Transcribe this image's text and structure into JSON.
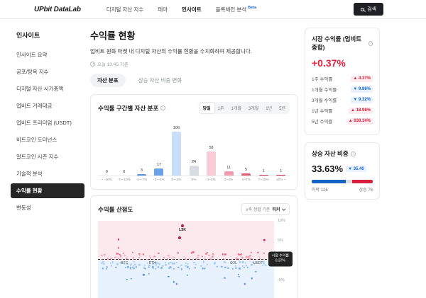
{
  "navbar": {
    "logo": "UPbit DataLab",
    "items": [
      {
        "label": "디지털 자산 지수",
        "active": false,
        "beta": false
      },
      {
        "label": "테마",
        "active": false,
        "beta": false
      },
      {
        "label": "인사이트",
        "active": true,
        "beta": false
      },
      {
        "label": "블록체인 분석",
        "active": false,
        "beta": true
      }
    ],
    "beta_label": "Beta",
    "search_label": "검색"
  },
  "sidebar": {
    "title": "인사이트",
    "items": [
      {
        "label": "인사이트 요약",
        "active": false
      },
      {
        "label": "공포/탐욕 지수",
        "active": false
      },
      {
        "label": "디지털 자산 시가총액",
        "active": false
      },
      {
        "label": "업비트 거래대금",
        "active": false
      },
      {
        "label": "업비트 프리미엄 (USDT)",
        "active": false
      },
      {
        "label": "비트코인 도미넌스",
        "active": false
      },
      {
        "label": "알트코인 시즌 지수",
        "active": false
      },
      {
        "label": "기술적 분석",
        "active": false
      },
      {
        "label": "수익률 현황",
        "active": true
      },
      {
        "label": "변동성",
        "active": false
      }
    ]
  },
  "page": {
    "title": "수익률 현황",
    "description": "업비트 원화 마켓 내 디지털 자산의 수익률 현황을 수치화하여 제공합니다.",
    "timestamp": "오늘 13:45 기준",
    "tabs": [
      {
        "label": "자산 분포",
        "active": true
      },
      {
        "label": "상승 자산 비중 변화",
        "active": false
      }
    ]
  },
  "dist_card": {
    "title": "수익률 구간별 자산 분포",
    "ranges": [
      "당일",
      "1주",
      "1개월",
      "3개월",
      "1년",
      "5년"
    ],
    "active_range": "당일"
  },
  "scatter_card": {
    "title": "수익률 산점도",
    "sort_label": "x축 정렬 기준",
    "sort_value": "티커"
  },
  "chart_data": [
    {
      "type": "bar",
      "title": "수익률 구간별 자산 분포",
      "categories": [
        "~ -10%",
        "-7~-10%",
        "-4~-7%",
        "-2~-4%",
        "0~-2%",
        "0%",
        "0~2%",
        "2~4%",
        "4~7%",
        "7~10%",
        "10% ~"
      ],
      "values": [
        0,
        0,
        3,
        17,
        106,
        24,
        58,
        11,
        5,
        1,
        1
      ],
      "colors": [
        "#1f5fc4",
        "#2f6fd0",
        "#5490dd",
        "#6ba1e6",
        "#c9def8",
        "#d8dde4",
        "#f9cdd8",
        "#f19cb1",
        "#e05a78",
        "#ce3457",
        "#c22a4e"
      ],
      "ylim": [
        0,
        106
      ],
      "xlabel": "수익률 구간",
      "ylabel": "자산 수"
    },
    {
      "type": "scatter",
      "title": "수익률 산점도",
      "ylim": [
        -10,
        10
      ],
      "yticks": [
        {
          "label": "10%",
          "pos": 0
        },
        {
          "label": "5%",
          "pos": 25
        },
        {
          "label": "-5%",
          "pos": 75
        },
        {
          "label": "-10%",
          "pos": 100
        }
      ],
      "market_return_pct": 0.37,
      "tooltip_lines": [
        "시장 수익률",
        "0.37%"
      ],
      "labeled_points": [
        {
          "label": "LSK",
          "x": 48,
          "y": 8.8
        },
        {
          "label": "",
          "x": 46.5,
          "y": 5.7
        }
      ],
      "ticker_labels": [
        {
          "label": "BTC",
          "x": 15
        },
        {
          "label": "ETH",
          "x": 31
        },
        {
          "label": "SOL",
          "x": 77
        },
        {
          "label": "USDT",
          "x": 91
        }
      ],
      "points_up_count": 76,
      "points_down_count": 126
    }
  ],
  "market_card": {
    "title": "시장 수익률 (업비트 종합)",
    "value": "+0.37%",
    "rows": [
      {
        "label": "1주 수익률",
        "value": "4.37%",
        "direction": "up"
      },
      {
        "label": "1개월 수익률",
        "value": "9.86%",
        "direction": "down"
      },
      {
        "label": "3개월 수익률",
        "value": "9.32%",
        "direction": "down"
      },
      {
        "label": "1년 수익률",
        "value": "18.98%",
        "direction": "up"
      },
      {
        "label": "5년 수익률",
        "value": "638.34%",
        "direction": "up"
      }
    ]
  },
  "breadth_card": {
    "title": "상승 자산 비중",
    "value": "33.63%",
    "badge_value": "35.40",
    "badge_direction": "down",
    "segments": [
      {
        "name": "down",
        "pct": 55.8,
        "color": "#1763c5"
      },
      {
        "name": "flat",
        "pct": 10.6,
        "color": "#d9dce1"
      },
      {
        "name": "up",
        "pct": 33.6,
        "color": "#d91f3e"
      }
    ],
    "left_label": "하락 126",
    "right_label": "상승 76"
  },
  "colors": {
    "accent_red": "#e0243f",
    "accent_blue": "#1b66cf",
    "active_pill": "#262626"
  }
}
